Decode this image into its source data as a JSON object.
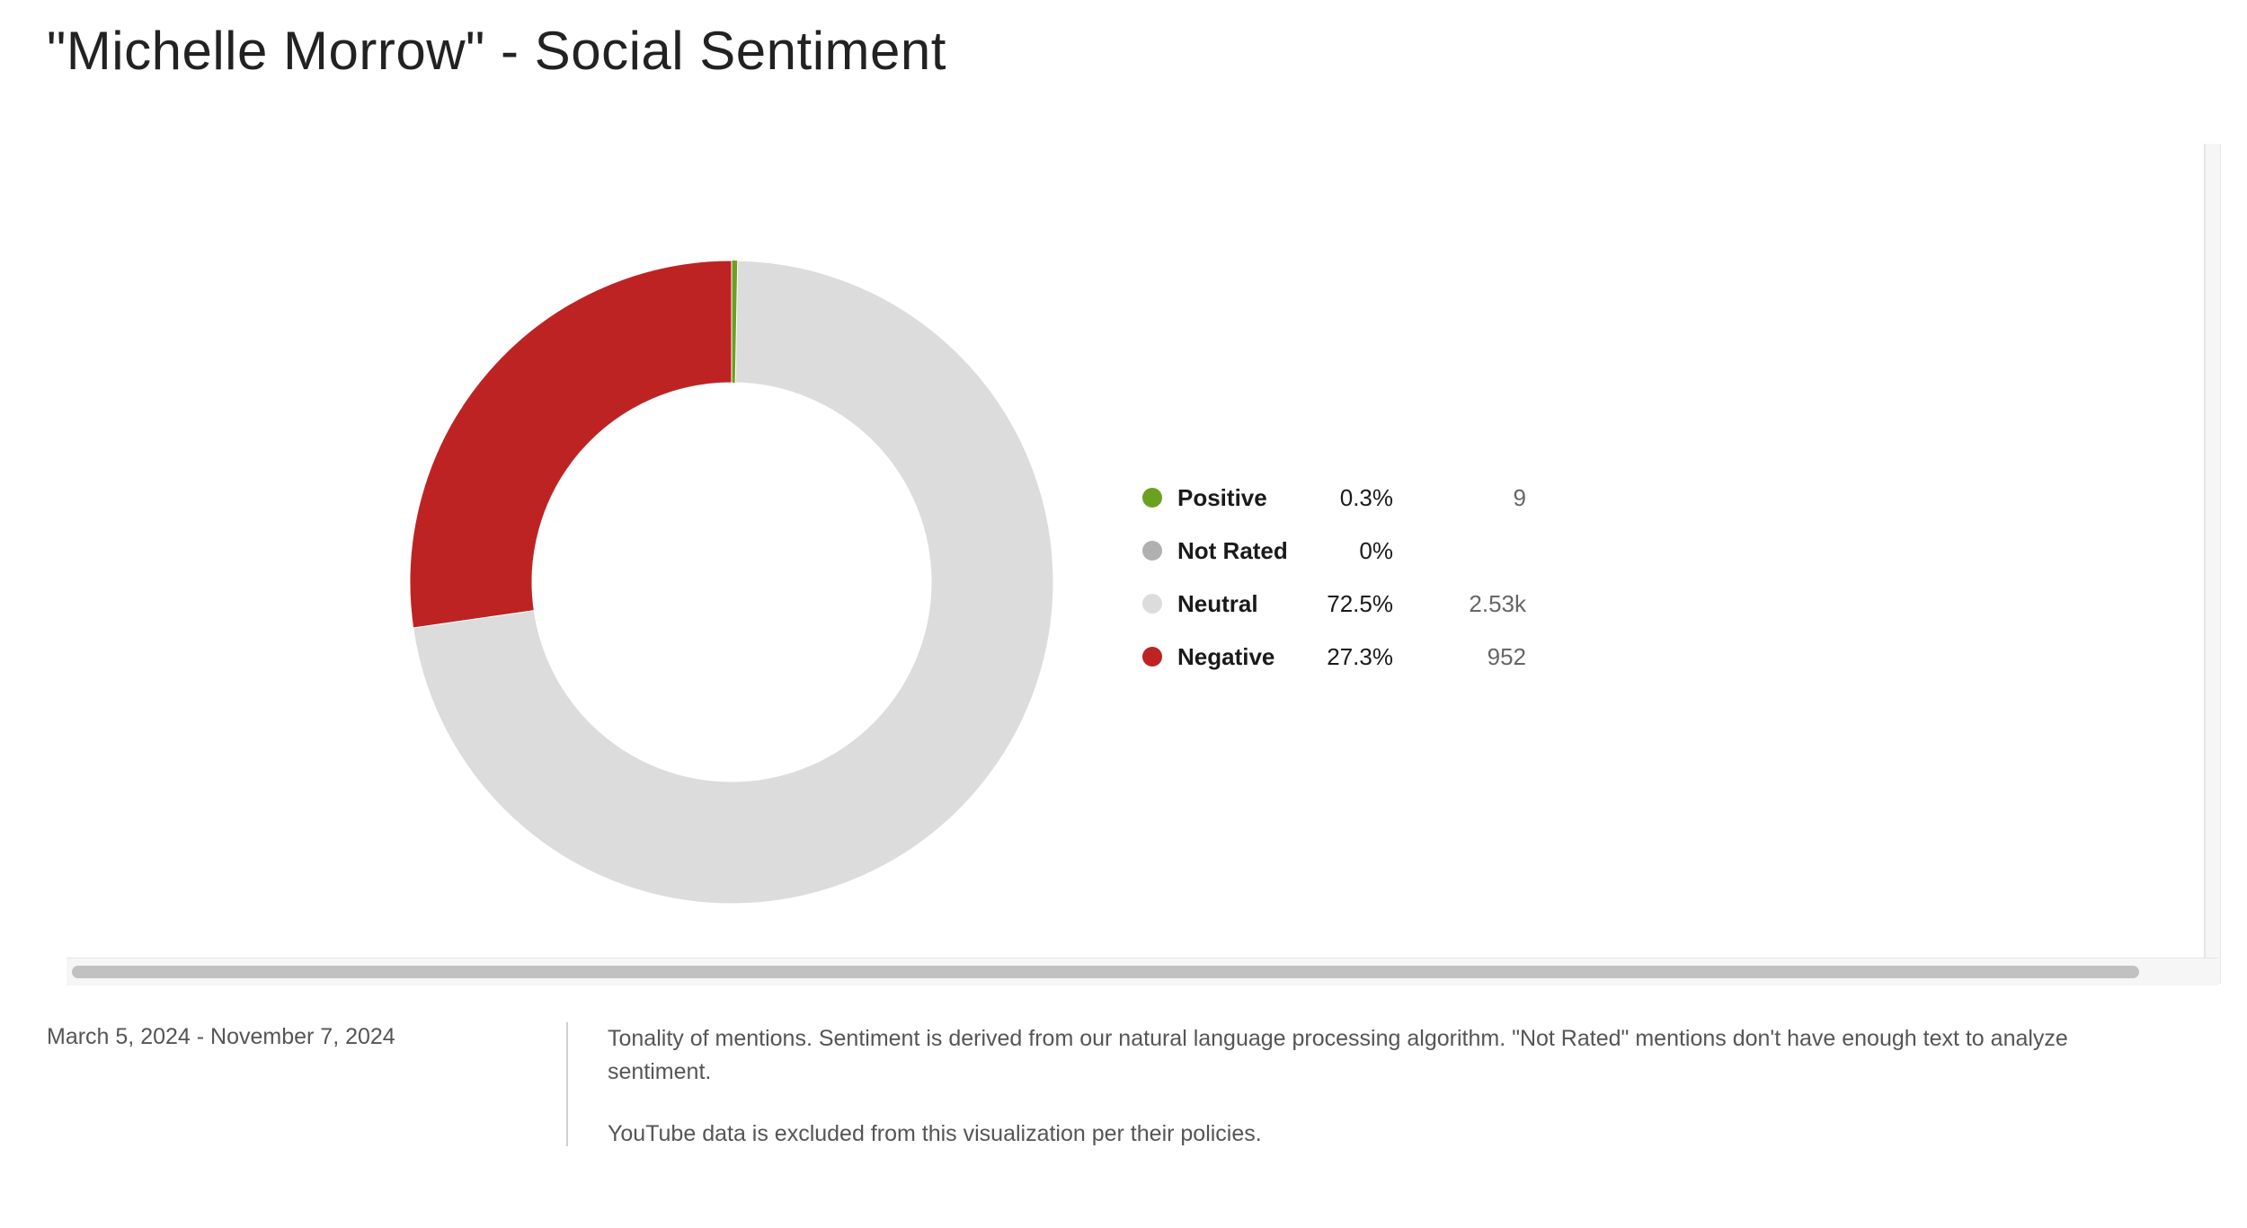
{
  "page": {
    "title": "\"Michelle Morrow\" - Social Sentiment"
  },
  "chart_data": {
    "type": "pie",
    "categories": [
      "Positive",
      "Not Rated",
      "Neutral",
      "Negative"
    ],
    "values": [
      0.3,
      0,
      72.5,
      27.3
    ],
    "percent_labels": [
      "0.3%",
      "0%",
      "72.5%",
      "27.3%"
    ],
    "count_labels": [
      "9",
      "",
      "2.53k",
      "952"
    ],
    "colors": [
      "#6aa121",
      "#b0b0b0",
      "#dcdcdc",
      "#be2323"
    ],
    "donut": true,
    "legend": "right"
  },
  "footer": {
    "date_range": "March 5, 2024 - November 7, 2024",
    "description": "Tonality of mentions. Sentiment is derived from our natural language processing algorithm. \"Not Rated\" mentions don't have enough text to analyze sentiment.",
    "note": "YouTube data is excluded from this visualization per their policies."
  }
}
